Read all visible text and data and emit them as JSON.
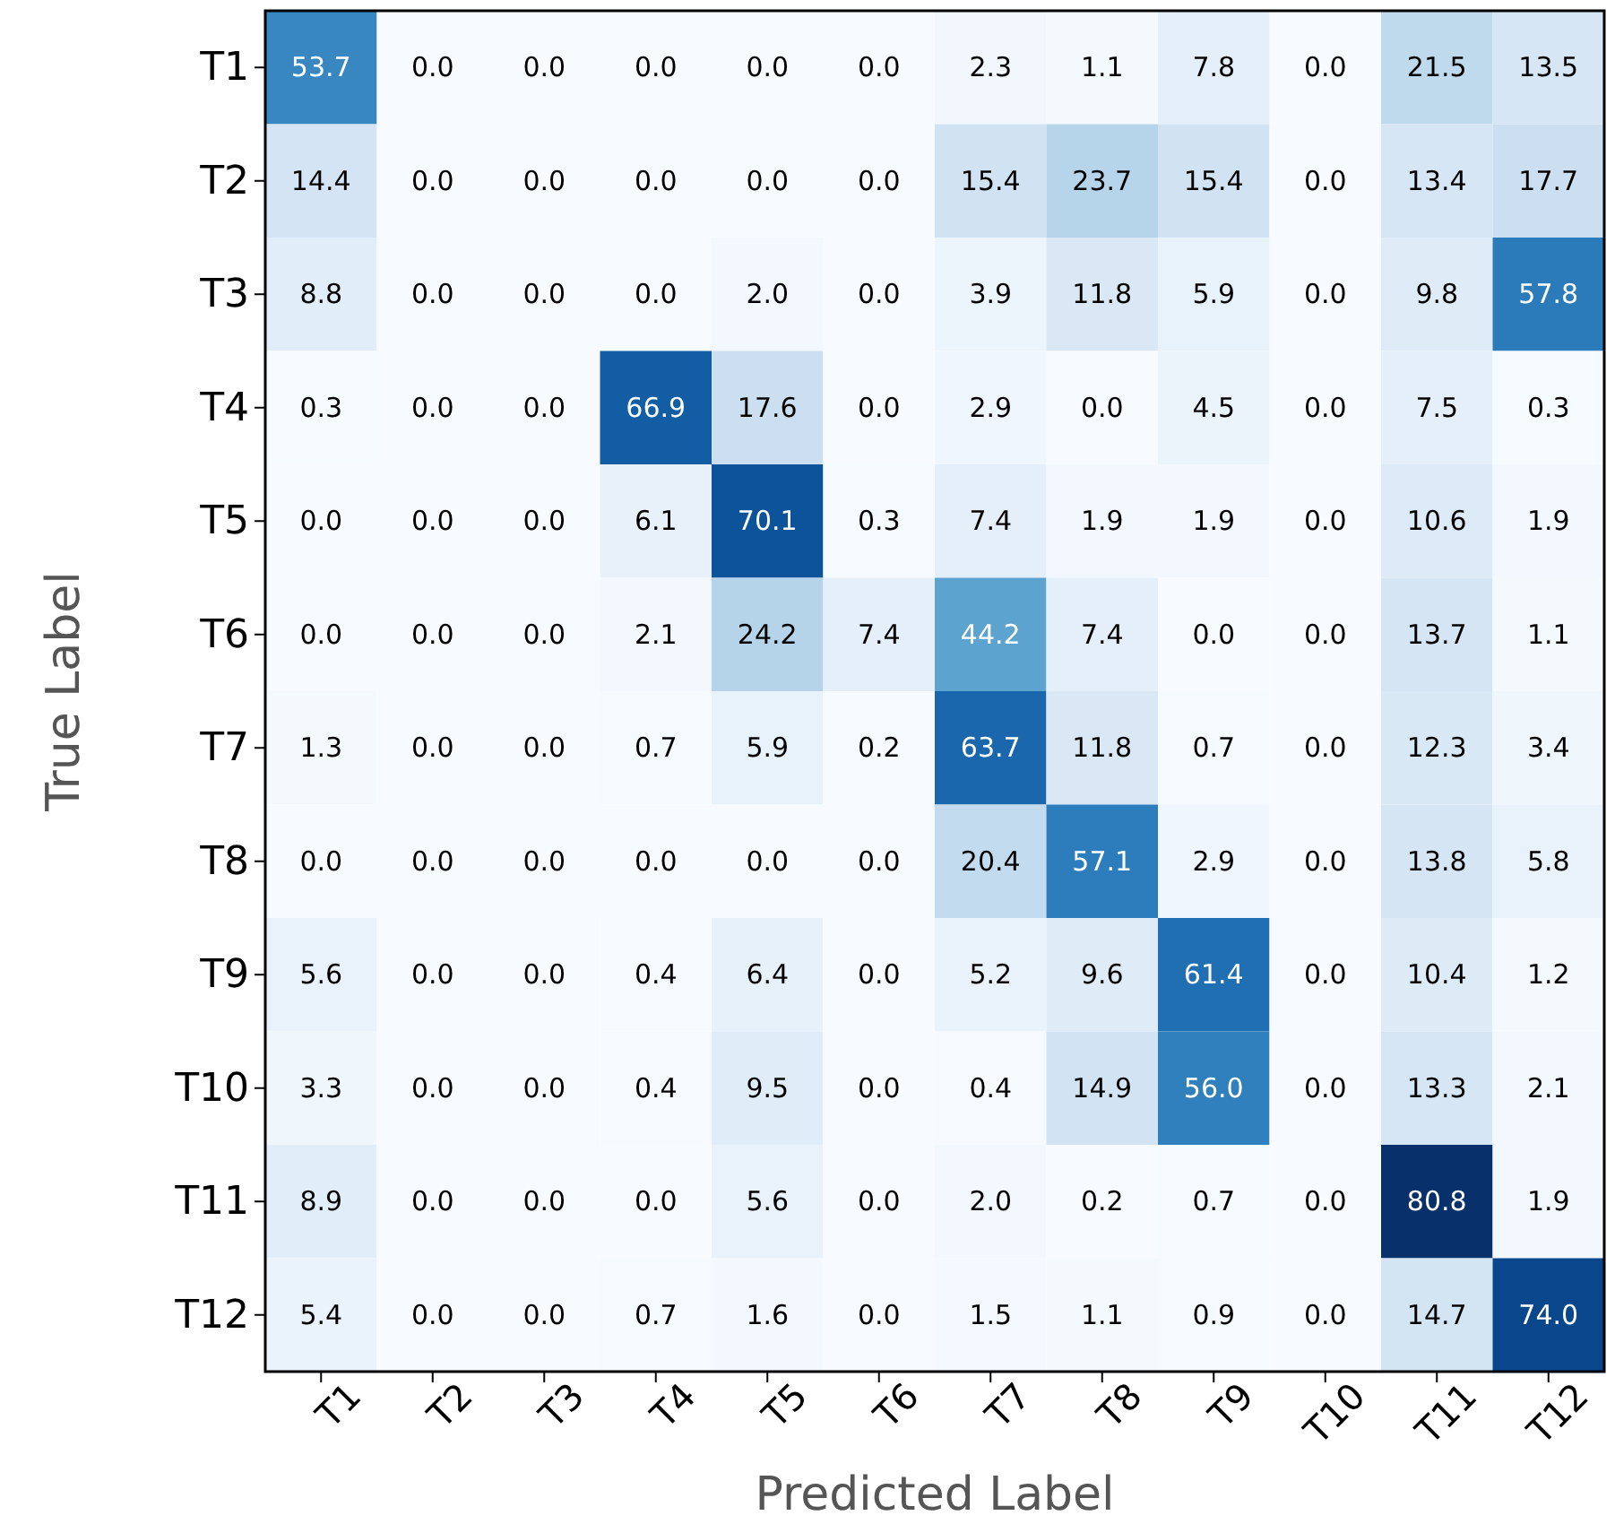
{
  "chart_data": {
    "type": "heatmap",
    "xlabel": "Predicted Label",
    "ylabel": "True Label",
    "categories": [
      "T1",
      "T2",
      "T3",
      "T4",
      "T5",
      "T6",
      "T7",
      "T8",
      "T9",
      "T10",
      "T11",
      "T12"
    ],
    "y_categories": [
      "T1",
      "T2",
      "T3",
      "T4",
      "T5",
      "T6",
      "T7",
      "T8",
      "T9",
      "T10",
      "T11",
      "T12"
    ],
    "cells": [
      [
        53.7,
        0.0,
        0.0,
        0.0,
        0.0,
        0.0,
        2.3,
        1.1,
        7.8,
        0.0,
        21.5,
        13.5
      ],
      [
        14.4,
        0.0,
        0.0,
        0.0,
        0.0,
        0.0,
        15.4,
        23.7,
        15.4,
        0.0,
        13.4,
        17.7
      ],
      [
        8.8,
        0.0,
        0.0,
        0.0,
        2.0,
        0.0,
        3.9,
        11.8,
        5.9,
        0.0,
        9.8,
        57.8
      ],
      [
        0.3,
        0.0,
        0.0,
        66.9,
        17.6,
        0.0,
        2.9,
        0.0,
        4.5,
        0.0,
        7.5,
        0.3
      ],
      [
        0.0,
        0.0,
        0.0,
        6.1,
        70.1,
        0.3,
        7.4,
        1.9,
        1.9,
        0.0,
        10.6,
        1.9
      ],
      [
        0.0,
        0.0,
        0.0,
        2.1,
        24.2,
        7.4,
        44.2,
        7.4,
        0.0,
        0.0,
        13.7,
        1.1
      ],
      [
        1.3,
        0.0,
        0.0,
        0.7,
        5.9,
        0.2,
        63.7,
        11.8,
        0.7,
        0.0,
        12.3,
        3.4
      ],
      [
        0.0,
        0.0,
        0.0,
        0.0,
        0.0,
        0.0,
        20.4,
        57.1,
        2.9,
        0.0,
        13.8,
        5.8
      ],
      [
        5.6,
        0.0,
        0.0,
        0.4,
        6.4,
        0.0,
        5.2,
        9.6,
        61.4,
        0.0,
        10.4,
        1.2
      ],
      [
        3.3,
        0.0,
        0.0,
        0.4,
        9.5,
        0.0,
        0.4,
        14.9,
        56.0,
        0.0,
        13.3,
        2.1
      ],
      [
        8.9,
        0.0,
        0.0,
        0.0,
        5.6,
        0.0,
        2.0,
        0.2,
        0.7,
        0.0,
        80.8,
        1.9
      ],
      [
        5.4,
        0.0,
        0.0,
        0.7,
        1.6,
        0.0,
        1.5,
        1.1,
        0.9,
        0.0,
        14.7,
        74.0
      ]
    ],
    "cell_labels": [
      [
        "53.7",
        "0.0",
        "0.0",
        "0.0",
        "0.0",
        "0.0",
        "2.3",
        "1.1",
        "7.8",
        "0.0",
        "21.5",
        "13.5"
      ],
      [
        "14.4",
        "0.0",
        "0.0",
        "0.0",
        "0.0",
        "0.0",
        "15.4",
        "23.7",
        "15.4",
        "0.0",
        "13.4",
        "17.7"
      ],
      [
        "8.8",
        "0.0",
        "0.0",
        "0.0",
        "2.0",
        "0.0",
        "3.9",
        "11.8",
        "5.9",
        "0.0",
        "9.8",
        "57.8"
      ],
      [
        "0.3",
        "0.0",
        "0.0",
        "66.9",
        "17.6",
        "0.0",
        "2.9",
        "0.0",
        "4.5",
        "0.0",
        "7.5",
        "0.3"
      ],
      [
        "0.0",
        "0.0",
        "0.0",
        "6.1",
        "70.1",
        "0.3",
        "7.4",
        "1.9",
        "1.9",
        "0.0",
        "10.6",
        "1.9"
      ],
      [
        "0.0",
        "0.0",
        "0.0",
        "2.1",
        "24.2",
        "7.4",
        "44.2",
        "7.4",
        "0.0",
        "0.0",
        "13.7",
        "1.1"
      ],
      [
        "1.3",
        "0.0",
        "0.0",
        "0.7",
        "5.9",
        "0.2",
        "63.7",
        "11.8",
        "0.7",
        "0.0",
        "12.3",
        "3.4"
      ],
      [
        "0.0",
        "0.0",
        "0.0",
        "0.0",
        "0.0",
        "0.0",
        "20.4",
        "57.1",
        "2.9",
        "0.0",
        "13.8",
        "5.8"
      ],
      [
        "5.6",
        "0.0",
        "0.0",
        "0.4",
        "6.4",
        "0.0",
        "5.2",
        "9.6",
        "61.4",
        "0.0",
        "10.4",
        "1.2"
      ],
      [
        "3.3",
        "0.0",
        "0.0",
        "0.4",
        "9.5",
        "0.0",
        "0.4",
        "14.9",
        "56.0",
        "0.0",
        "13.3",
        "2.1"
      ],
      [
        "8.9",
        "0.0",
        "0.0",
        "0.0",
        "5.6",
        "0.0",
        "2.0",
        "0.2",
        "0.7",
        "0.0",
        "80.8",
        "1.9"
      ],
      [
        "5.4",
        "0.0",
        "0.0",
        "0.7",
        "1.6",
        "0.0",
        "1.5",
        "1.1",
        "0.9",
        "0.0",
        "14.7",
        "74.0"
      ]
    ]
  }
}
